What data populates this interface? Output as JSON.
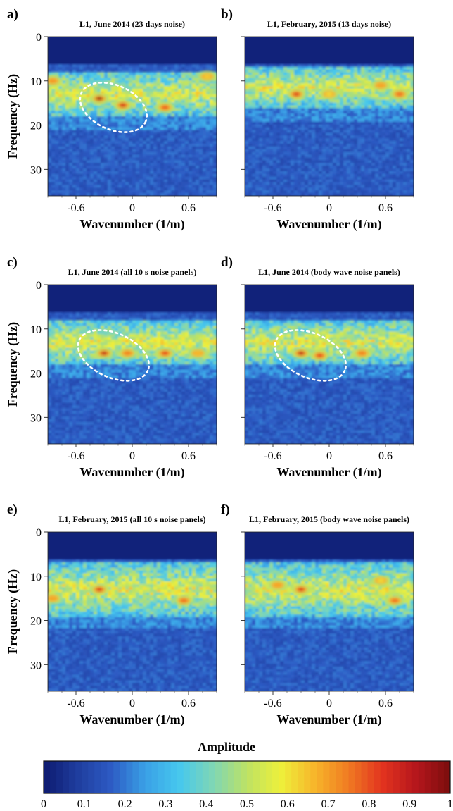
{
  "colors": {
    "colormap": [
      "#0d1a6e",
      "#1f3d9e",
      "#2d5bc4",
      "#3aa0e6",
      "#46c8ee",
      "#7fd6b5",
      "#bde264",
      "#eef03a",
      "#f7b52a",
      "#f07a22",
      "#e2331f",
      "#b5161c",
      "#7a0d0d"
    ],
    "annotation": "#ffffff",
    "background": "#0f1d70"
  },
  "panels": [
    {
      "letter": "a)",
      "title": "L1, June 2014 (23 days noise)",
      "ylabel": "Frequency (Hz)",
      "xlabel": "Wavenumber (1/m)",
      "has_ellipse": true
    },
    {
      "letter": "b)",
      "title": "L1, February, 2015 (13 days noise)",
      "ylabel": "",
      "xlabel": "Wavenumber (1/m)",
      "has_ellipse": false
    },
    {
      "letter": "c)",
      "title": "L1, June 2014 (all 10 s noise panels)",
      "ylabel": "Frequency (Hz)",
      "xlabel": "Wavenumber (1/m)",
      "has_ellipse": true
    },
    {
      "letter": "d)",
      "title": "L1, June 2014 (body wave noise panels)",
      "ylabel": "",
      "xlabel": "Wavenumber (1/m)",
      "has_ellipse": true
    },
    {
      "letter": "e)",
      "title": "L1, February, 2015 (all 10 s noise panels)",
      "ylabel": "Frequency (Hz)",
      "xlabel": "Wavenumber (1/m)",
      "has_ellipse": false
    },
    {
      "letter": "f)",
      "title": "L1, February, 2015 (body wave noise panels)",
      "ylabel": "",
      "xlabel": "Wavenumber (1/m)",
      "has_ellipse": false
    }
  ],
  "colorbar": {
    "title": "Amplitude",
    "ticks": [
      "0",
      "0.1",
      "0.2",
      "0.3",
      "0.4",
      "0.5",
      "0.6",
      "0.7",
      "0.8",
      "0.9",
      "1"
    ]
  },
  "chart_data": [
    {
      "type": "heatmap",
      "title": "L1, June 2014 (23 days noise)",
      "xlabel": "Wavenumber (1/m)",
      "ylabel": "Frequency (Hz)",
      "xlim": [
        -0.9,
        0.9
      ],
      "ylim": [
        0,
        36
      ],
      "xticks": [
        "-0.6",
        "0",
        "0.6"
      ],
      "yticks": [
        "0",
        "10",
        "20",
        "30"
      ],
      "zlim": [
        0,
        1
      ],
      "energy_band_hz": [
        8,
        18
      ],
      "peak_amplitude": 0.95,
      "peaks": [
        [
          -0.35,
          14
        ],
        [
          -0.1,
          15.5
        ],
        [
          0.35,
          16
        ],
        [
          -0.85,
          10
        ],
        [
          0.8,
          9
        ]
      ],
      "annotation": {
        "shape": "dashed-ellipse",
        "center": [
          -0.2,
          16
        ],
        "note": "",
        "kx_range": [
          -0.55,
          0.2
        ],
        "f_range": [
          11,
          21
        ]
      }
    },
    {
      "type": "heatmap",
      "title": "L1, February, 2015 (13 days noise)",
      "xlabel": "Wavenumber (1/m)",
      "ylabel": "",
      "xlim": [
        -0.9,
        0.9
      ],
      "ylim": [
        0,
        36
      ],
      "xticks": [
        "-0.6",
        "0",
        "0.6"
      ],
      "yticks": [],
      "zlim": [
        0,
        1
      ],
      "energy_band_hz": [
        7,
        16
      ],
      "peak_amplitude": 0.85,
      "peaks": [
        [
          -0.35,
          13
        ],
        [
          0.75,
          13
        ],
        [
          0.55,
          11
        ],
        [
          0.0,
          13
        ]
      ]
    },
    {
      "type": "heatmap",
      "title": "L1, June 2014 (all 10 s noise panels)",
      "xlabel": "Wavenumber (1/m)",
      "ylabel": "Frequency (Hz)",
      "xlim": [
        -0.9,
        0.9
      ],
      "ylim": [
        0,
        36
      ],
      "xticks": [
        "-0.6",
        "0",
        "0.6"
      ],
      "yticks": [
        "0",
        "10",
        "20",
        "30"
      ],
      "zlim": [
        0,
        1
      ],
      "energy_band_hz": [
        8,
        18
      ],
      "peak_amplitude": 0.9,
      "peaks": [
        [
          -0.3,
          15.5
        ],
        [
          0.35,
          15.5
        ],
        [
          -0.05,
          15.5
        ],
        [
          0.7,
          15.5
        ]
      ],
      "annotation": {
        "shape": "dashed-ellipse",
        "center": [
          -0.2,
          16
        ],
        "kx_range": [
          -0.6,
          0.2
        ],
        "f_range": [
          11,
          21
        ]
      }
    },
    {
      "type": "heatmap",
      "title": "L1, June 2014 (body wave noise panels)",
      "xlabel": "Wavenumber (1/m)",
      "ylabel": "",
      "xlim": [
        -0.9,
        0.9
      ],
      "ylim": [
        0,
        36
      ],
      "xticks": [
        "-0.6",
        "0",
        "0.6"
      ],
      "yticks": [],
      "zlim": [
        0,
        1
      ],
      "energy_band_hz": [
        8,
        18
      ],
      "peak_amplitude": 0.9,
      "peaks": [
        [
          -0.3,
          15.5
        ],
        [
          -0.1,
          16
        ],
        [
          0.35,
          15.5
        ]
      ],
      "annotation": {
        "shape": "dashed-ellipse",
        "center": [
          -0.2,
          16
        ],
        "kx_range": [
          -0.6,
          0.2
        ],
        "f_range": [
          11,
          21
        ]
      }
    },
    {
      "type": "heatmap",
      "title": "L1, February, 2015 (all 10 s noise panels)",
      "xlabel": "Wavenumber (1/m)",
      "ylabel": "Frequency (Hz)",
      "xlim": [
        -0.9,
        0.9
      ],
      "ylim": [
        0,
        36
      ],
      "xticks": [
        "-0.6",
        "0",
        "0.6"
      ],
      "yticks": [
        "0",
        "10",
        "20",
        "30"
      ],
      "zlim": [
        0,
        1
      ],
      "energy_band_hz": [
        7,
        19
      ],
      "peak_amplitude": 0.85,
      "peaks": [
        [
          -0.35,
          13
        ],
        [
          0.55,
          15.5
        ],
        [
          -0.85,
          15
        ]
      ]
    },
    {
      "type": "heatmap",
      "title": "L1, February, 2015 (body wave noise panels)",
      "xlabel": "Wavenumber (1/m)",
      "ylabel": "",
      "xlim": [
        -0.9,
        0.9
      ],
      "ylim": [
        0,
        36
      ],
      "xticks": [
        "-0.6",
        "0",
        "0.6"
      ],
      "yticks": [],
      "zlim": [
        0,
        1
      ],
      "energy_band_hz": [
        7,
        19
      ],
      "peak_amplitude": 0.85,
      "peaks": [
        [
          -0.3,
          13
        ],
        [
          0.7,
          15.5
        ],
        [
          -0.55,
          12
        ],
        [
          0.55,
          11
        ]
      ]
    }
  ]
}
